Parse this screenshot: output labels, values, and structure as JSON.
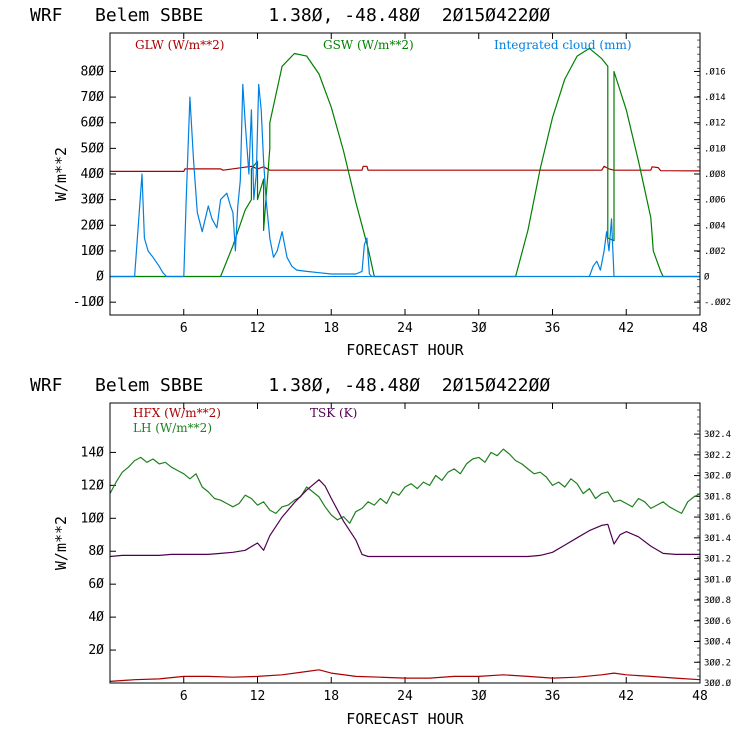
{
  "chart_data": [
    {
      "type": "line",
      "title": "WRF   Belem SBBE      1.38Ø, -48.48Ø  2Ø15Ø422ØØ",
      "xlabel": "FORECAST HOUR",
      "ylabel": "W/m**2",
      "xlim": [
        0,
        48
      ],
      "ylim": [
        -150,
        950
      ],
      "xticks": [
        6,
        12,
        18,
        24,
        30,
        36,
        42,
        48
      ],
      "xtick_labels": [
        "6",
        "12",
        "18",
        "24",
        "3Ø",
        "36",
        "42",
        "48"
      ],
      "yticks": [
        -100,
        0,
        100,
        200,
        300,
        400,
        500,
        600,
        700,
        800
      ],
      "ytick_labels": [
        "-1ØØ",
        "Ø",
        "1ØØ",
        "2ØØ",
        "3ØØ",
        "4ØØ",
        "5ØØ",
        "6ØØ",
        "7ØØ",
        "8ØØ"
      ],
      "right_axis": {
        "ylim": [
          -0.003,
          0.019
        ],
        "ticks": [
          -0.002,
          0,
          0.002,
          0.004,
          0.006,
          0.008,
          0.01,
          0.012,
          0.014,
          0.016
        ],
        "tick_labels": [
          "-.ØØ2",
          "Ø",
          ".ØØ2",
          ".ØØ4",
          ".ØØ6",
          ".ØØ8",
          ".Ø1Ø",
          ".Ø12",
          ".Ø14",
          ".Ø16"
        ]
      },
      "series": [
        {
          "name": "GLW (W/m**2)",
          "color": "#aa0000",
          "axis": "left",
          "x": [
            0,
            6,
            6.1,
            9,
            9.2,
            11.5,
            12,
            12.5,
            13,
            20.5,
            20.6,
            20.9,
            21,
            40,
            40.2,
            40.6,
            41,
            44,
            44.1,
            44.6,
            44.8,
            48
          ],
          "y": [
            410,
            410,
            420,
            420,
            415,
            430,
            420,
            428,
            415,
            415,
            430,
            430,
            415,
            415,
            430,
            420,
            415,
            415,
            428,
            425,
            413,
            412
          ]
        },
        {
          "name": "GSW (W/m**2)",
          "color": "#008000",
          "axis": "left",
          "x": [
            0,
            9,
            10,
            11,
            11.5,
            11.5,
            12,
            12,
            12.5,
            12.5,
            13,
            13,
            14,
            15,
            16,
            17,
            18,
            19,
            20,
            21,
            21.5,
            22,
            33,
            34,
            35,
            36,
            37,
            38,
            39,
            40,
            40.5,
            40.5,
            41,
            41,
            42,
            43,
            44,
            44.2,
            44.5,
            44.8,
            45,
            48
          ],
          "y": [
            0,
            0,
            120,
            260,
            300,
            420,
            450,
            300,
            380,
            180,
            500,
            600,
            820,
            870,
            860,
            790,
            660,
            490,
            290,
            110,
            0,
            0,
            0,
            180,
            420,
            620,
            770,
            860,
            890,
            850,
            820,
            150,
            140,
            800,
            650,
            450,
            230,
            100,
            60,
            20,
            0,
            0
          ]
        },
        {
          "name": "Integrated cloud (mm)",
          "color": "#0080e0",
          "axis": "right",
          "x": [
            0,
            2,
            2.3,
            2.6,
            2.8,
            3.1,
            3.5,
            4,
            4.3,
            4.6,
            5,
            6,
            6.2,
            6.5,
            6.8,
            7.1,
            7.5,
            8,
            8.3,
            8.7,
            9,
            9.5,
            9.8,
            10,
            10.2,
            10.4,
            10.6,
            10.8,
            11,
            11.3,
            11.5,
            11.7,
            11.9,
            12.1,
            12.3,
            12.5,
            12.7,
            13,
            13.3,
            13.6,
            14,
            14.4,
            14.8,
            15.2,
            16,
            17,
            18,
            19,
            20,
            20.5,
            20.7,
            20.9,
            21.1,
            21.3,
            21.6,
            22,
            38,
            39,
            39.3,
            39.6,
            39.9,
            40.2,
            40.4,
            40.6,
            40.8,
            41,
            48
          ],
          "y": [
            0,
            0,
            0.004,
            0.008,
            0.003,
            0.002,
            0.0015,
            0.0008,
            0.0003,
            0,
            0,
            0,
            0.006,
            0.014,
            0.009,
            0.005,
            0.0035,
            0.0055,
            0.0045,
            0.0038,
            0.006,
            0.0065,
            0.0055,
            0.005,
            0.002,
            0.0055,
            0.0075,
            0.015,
            0.012,
            0.008,
            0.013,
            0.006,
            0.008,
            0.015,
            0.013,
            0.009,
            0.006,
            0.003,
            0.0015,
            0.002,
            0.0035,
            0.0015,
            0.0008,
            0.0005,
            0.0004,
            0.0003,
            0.0002,
            0.0002,
            0.0002,
            0.0004,
            0.0025,
            0.003,
            0.0002,
            0,
            0,
            0,
            0,
            0,
            0.0008,
            0.0012,
            0.0005,
            0.002,
            0.0035,
            0.002,
            0.0045,
            0,
            0
          ]
        }
      ]
    },
    {
      "type": "line",
      "title": "WRF   Belem SBBE      1.38Ø, -48.48Ø  2Ø15Ø422ØØ",
      "xlabel": "FORECAST HOUR",
      "ylabel": "W/m**2",
      "xlim": [
        0,
        48
      ],
      "ylim": [
        0,
        170
      ],
      "xticks": [
        6,
        12,
        18,
        24,
        30,
        36,
        42,
        48
      ],
      "xtick_labels": [
        "6",
        "12",
        "18",
        "24",
        "3Ø",
        "36",
        "42",
        "48"
      ],
      "yticks": [
        20,
        40,
        60,
        80,
        100,
        120,
        140
      ],
      "ytick_labels": [
        "2Ø",
        "4Ø",
        "6Ø",
        "8Ø",
        "1ØØ",
        "12Ø",
        "14Ø"
      ],
      "right_axis": {
        "ylim": [
          300.0,
          302.7
        ],
        "ticks": [
          300.0,
          300.2,
          300.4,
          300.6,
          300.8,
          301.0,
          301.2,
          301.4,
          301.6,
          301.8,
          302.0,
          302.2,
          302.4
        ],
        "tick_labels": [
          "3ØØ.Ø",
          "3ØØ.2",
          "3ØØ.4",
          "3ØØ.6",
          "3ØØ.8",
          "3Ø1.Ø",
          "3Ø1.2",
          "3Ø1.4",
          "3Ø1.6",
          "3Ø1.8",
          "3Ø2.Ø",
          "3Ø2.2",
          "3Ø2.4"
        ]
      },
      "series": [
        {
          "name": "HFX (W/m**2)",
          "color": "#aa0000",
          "axis": "left",
          "x": [
            0,
            2,
            4,
            6,
            8,
            10,
            12,
            14,
            16,
            17,
            18,
            20,
            22,
            24,
            26,
            28,
            30,
            32,
            34,
            36,
            38,
            40,
            41,
            42,
            44,
            46,
            48
          ],
          "y": [
            1,
            2,
            2.5,
            4,
            4,
            3.5,
            4,
            5,
            7,
            8,
            6,
            4,
            3.5,
            3,
            3,
            4,
            4,
            5,
            4,
            3,
            3.5,
            5,
            6,
            5,
            4,
            3,
            2
          ]
        },
        {
          "name": "LH (W/m**2)",
          "color": "#208020",
          "axis": "left",
          "x": [
            0,
            0.5,
            1,
            1.5,
            2,
            2.5,
            3,
            3.5,
            4,
            4.5,
            5,
            5.5,
            6,
            6.5,
            7,
            7.5,
            8,
            8.5,
            9,
            9.5,
            10,
            10.5,
            11,
            11.5,
            12,
            12.5,
            13,
            13.5,
            14,
            14.5,
            15,
            15.5,
            16,
            16.5,
            17,
            17.5,
            18,
            18.5,
            19,
            19.5,
            20,
            20.5,
            21,
            21.5,
            22,
            22.5,
            23,
            23.5,
            24,
            24.5,
            25,
            25.5,
            26,
            26.5,
            27,
            27.5,
            28,
            28.5,
            29,
            29.5,
            30,
            30.5,
            31,
            31.5,
            32,
            32.5,
            33,
            33.5,
            34,
            34.5,
            35,
            35.5,
            36,
            36.5,
            37,
            37.5,
            38,
            38.5,
            39,
            39.5,
            40,
            40.5,
            41,
            41.5,
            42,
            42.5,
            43,
            43.5,
            44,
            44.5,
            45,
            45.5,
            46,
            46.5,
            47,
            47.5,
            48
          ],
          "y": [
            115,
            122,
            128,
            131,
            135,
            137,
            134,
            136,
            133,
            134,
            131,
            129,
            127,
            124,
            127,
            119,
            116,
            112,
            111,
            109,
            107,
            109,
            114,
            112,
            108,
            110,
            105,
            103,
            107,
            108,
            111,
            113,
            119,
            116,
            113,
            107,
            102,
            99,
            101,
            97,
            104,
            106,
            110,
            108,
            112,
            109,
            116,
            114,
            119,
            121,
            118,
            122,
            120,
            126,
            123,
            128,
            130,
            127,
            133,
            136,
            137,
            134,
            140,
            138,
            142,
            139,
            135,
            133,
            130,
            127,
            128,
            125,
            120,
            122,
            119,
            124,
            121,
            115,
            118,
            112,
            115,
            116,
            110,
            111,
            109,
            107,
            112,
            110,
            106,
            108,
            110,
            107,
            105,
            103,
            110,
            113,
            115
          ]
        },
        {
          "name": "TSK (K)",
          "color": "#500050",
          "axis": "right",
          "x": [
            0,
            1,
            2,
            3,
            4,
            5,
            6,
            7,
            8,
            9,
            10,
            11,
            12,
            12.5,
            13,
            14,
            15,
            16,
            17,
            17.5,
            18,
            19,
            20,
            20.5,
            21,
            22,
            24,
            28,
            32,
            34,
            35,
            36,
            37,
            38,
            39,
            40,
            40.5,
            41,
            41.5,
            42,
            43,
            44,
            45,
            46,
            48
          ],
          "y": [
            301.22,
            301.23,
            301.23,
            301.23,
            301.23,
            301.24,
            301.24,
            301.24,
            301.24,
            301.25,
            301.26,
            301.28,
            301.35,
            301.28,
            301.42,
            301.6,
            301.74,
            301.86,
            301.96,
            301.9,
            301.78,
            301.56,
            301.38,
            301.24,
            301.22,
            301.22,
            301.22,
            301.22,
            301.22,
            301.22,
            301.23,
            301.26,
            301.33,
            301.4,
            301.47,
            301.52,
            301.53,
            301.34,
            301.43,
            301.46,
            301.41,
            301.32,
            301.25,
            301.24,
            301.24
          ]
        }
      ]
    }
  ]
}
